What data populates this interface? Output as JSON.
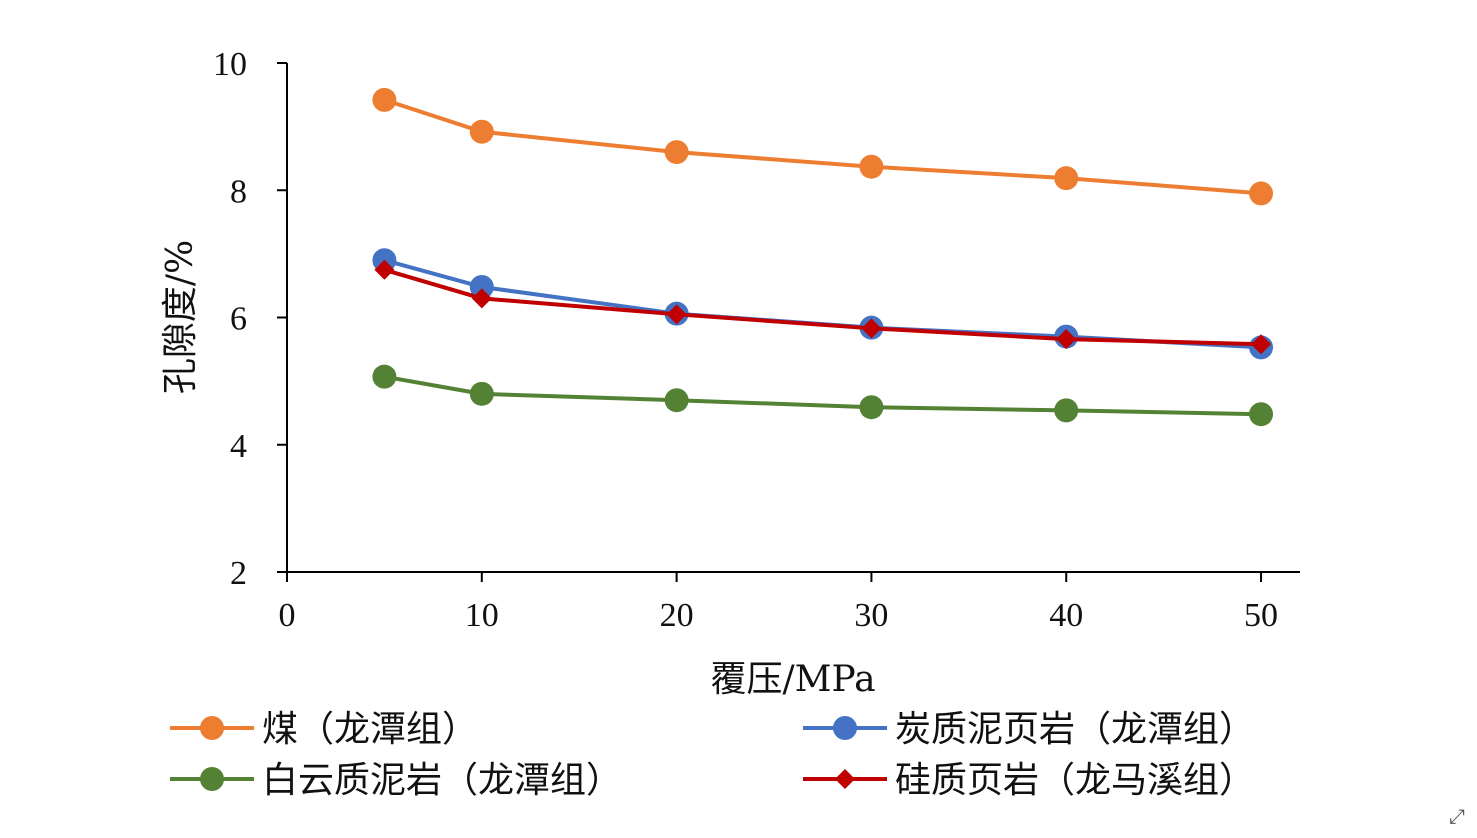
{
  "chart_data": {
    "type": "line",
    "xlabel": "覆压/MPa",
    "ylabel": "孔隙度/%",
    "xlim": [
      0,
      52
    ],
    "ylim": [
      2,
      10
    ],
    "xticks": [
      0,
      10,
      20,
      30,
      40,
      50
    ],
    "yticks": [
      2,
      4,
      6,
      8,
      10
    ],
    "x": [
      5,
      10,
      20,
      30,
      40,
      50
    ],
    "legend_position": "bottom",
    "series": [
      {
        "name": "煤（龙潭组）",
        "color": "#ED7D31",
        "marker": "circle",
        "values": [
          9.42,
          8.92,
          8.6,
          8.37,
          8.19,
          7.95
        ]
      },
      {
        "name": "炭质泥页岩（龙潭组）",
        "color": "#4472C4",
        "marker": "circle",
        "values": [
          6.9,
          6.48,
          6.06,
          5.84,
          5.7,
          5.53
        ]
      },
      {
        "name": "白云质泥岩（龙潭组）",
        "color": "#548235",
        "marker": "circle",
        "values": [
          5.07,
          4.8,
          4.7,
          4.59,
          4.54,
          4.48
        ]
      },
      {
        "name": "硅质页岩（龙马溪组）",
        "color": "#C00000",
        "marker": "diamond",
        "values": [
          6.75,
          6.3,
          6.05,
          5.83,
          5.66,
          5.58
        ]
      }
    ]
  },
  "icons": {
    "expand": "expand-icon"
  }
}
